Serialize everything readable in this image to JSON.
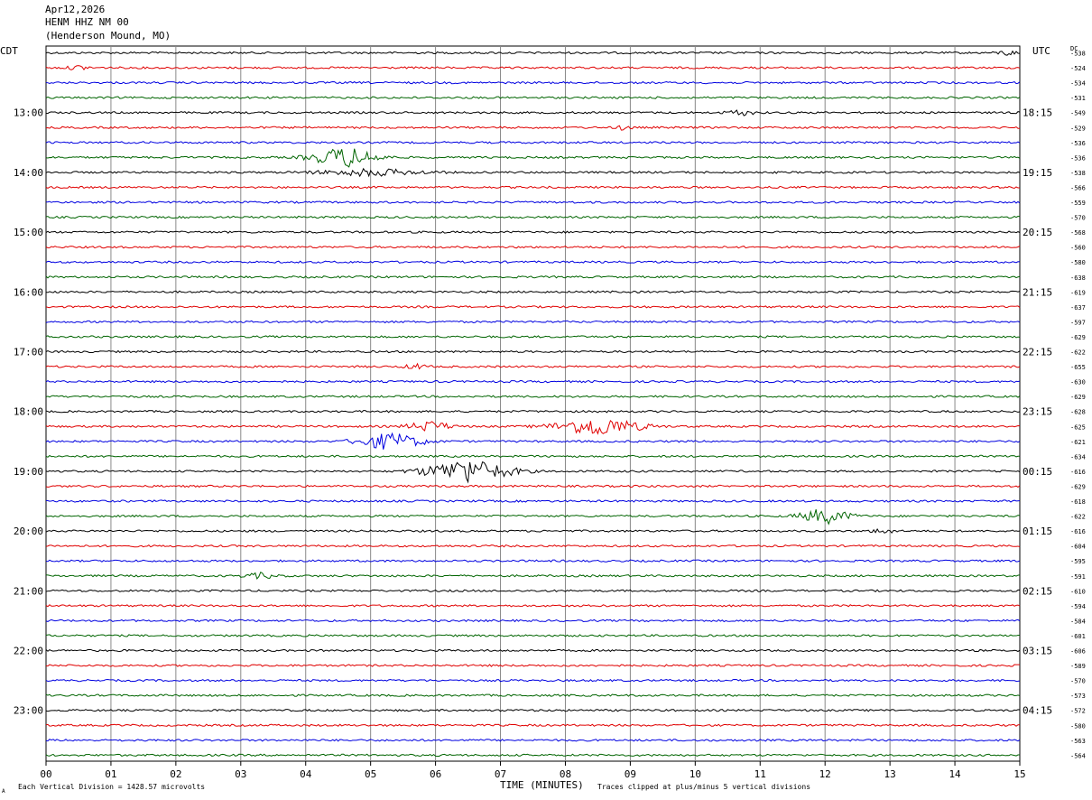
{
  "header": {
    "date": "Apr12,2026",
    "station": "HENM HHZ NM 00",
    "location": "(Henderson Mound, MO)"
  },
  "labels": {
    "left_timezone": "CDT",
    "right_timezone": "UTC",
    "dc_header": "DC",
    "x_axis_title": "TIME (MINUTES)",
    "scale_note": "Each Vertical Division = 1428.57 microvolts",
    "clip_note": "Traces clipped at plus/minus 5 vertical divisions",
    "corner_mark": "A"
  },
  "chart_data": {
    "type": "line",
    "title": "HENM HHZ NM 00",
    "xlabel": "TIME (MINUTES)",
    "x_ticks": [
      "00",
      "01",
      "02",
      "03",
      "04",
      "05",
      "06",
      "07",
      "08",
      "09",
      "10",
      "11",
      "12",
      "13",
      "14",
      "15"
    ],
    "xlim": [
      0,
      15
    ],
    "trace_colors": [
      "#000000",
      "#e00000",
      "#0000e0",
      "#006400"
    ],
    "trace_count": 48,
    "left_hour_labels": [
      "13:00",
      "14:00",
      "15:00",
      "16:00",
      "17:00",
      "18:00",
      "19:00",
      "20:00",
      "21:00",
      "22:00",
      "23:00"
    ],
    "right_hour_labels": [
      "18:15",
      "19:15",
      "20:15",
      "21:15",
      "22:15",
      "23:15",
      "00:15",
      "01:15",
      "02:15",
      "03:15",
      "04:15"
    ],
    "hour_label_first_trace": 4,
    "traces_per_hour": 4,
    "dc_offsets": [
      "-538",
      "-524",
      "-534",
      "-531",
      "-549",
      "-529",
      "-536",
      "-536",
      "-538",
      "-566",
      "-559",
      "-570",
      "-568",
      "-560",
      "-580",
      "-638",
      "-619",
      "-637",
      "-597",
      "-629",
      "-622",
      "-655",
      "-630",
      "-629",
      "-628",
      "-625",
      "-621",
      "-634",
      "-616",
      "-629",
      "-618",
      "-622",
      "-616",
      "-604",
      "-595",
      "-591",
      "-610",
      "-594",
      "-584",
      "-601",
      "-606",
      "-589",
      "-570",
      "-573",
      "-572",
      "-580",
      "-563",
      "-564"
    ],
    "events": [
      {
        "trace": 0,
        "minute": 14.8,
        "amp": 3,
        "dur": 0.25
      },
      {
        "trace": 1,
        "minute": 0.5,
        "amp": 2.5,
        "dur": 0.3
      },
      {
        "trace": 4,
        "minute": 10.7,
        "amp": 3,
        "dur": 0.4
      },
      {
        "trace": 5,
        "minute": 8.9,
        "amp": 3,
        "dur": 0.2
      },
      {
        "trace": 7,
        "minute": 4.6,
        "amp": 12,
        "dur": 0.9
      },
      {
        "trace": 8,
        "minute": 5.0,
        "amp": 4,
        "dur": 1.5
      },
      {
        "trace": 26,
        "minute": 5.3,
        "amp": 10,
        "dur": 0.9
      },
      {
        "trace": 25,
        "minute": 8.5,
        "amp": 11,
        "dur": 1.2
      },
      {
        "trace": 25,
        "minute": 5.9,
        "amp": 6,
        "dur": 0.6
      },
      {
        "trace": 28,
        "minute": 6.5,
        "amp": 14,
        "dur": 1.2
      },
      {
        "trace": 31,
        "minute": 12.0,
        "amp": 9,
        "dur": 0.7
      },
      {
        "trace": 32,
        "minute": 12.9,
        "amp": 3,
        "dur": 0.3
      },
      {
        "trace": 35,
        "minute": 3.3,
        "amp": 3,
        "dur": 0.5
      },
      {
        "trace": 21,
        "minute": 5.7,
        "amp": 3,
        "dur": 0.3
      }
    ]
  }
}
